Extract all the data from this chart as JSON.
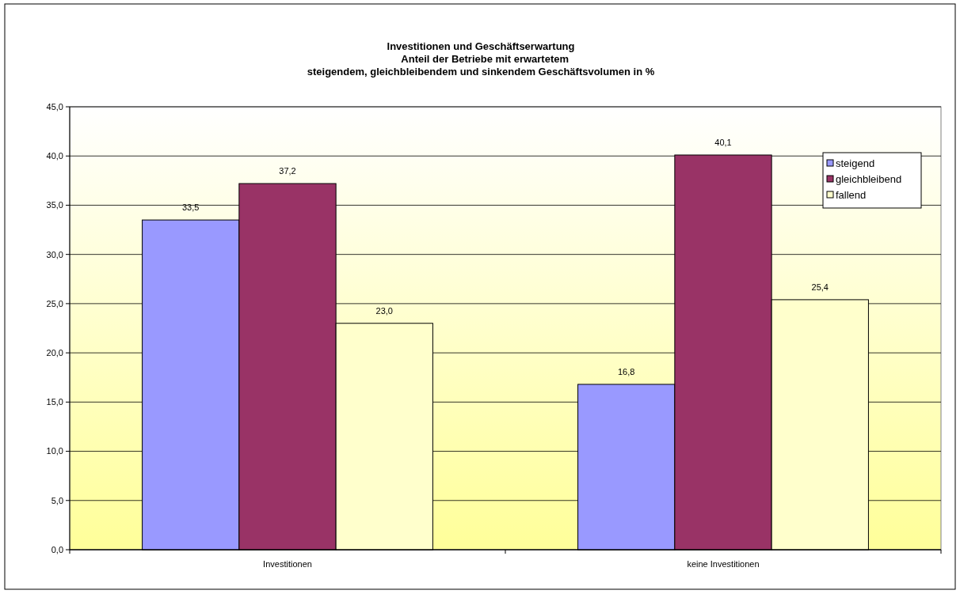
{
  "chart_data": {
    "type": "bar",
    "title": "Investitionen und Geschäftserwartung\n   Anteil der Betriebe mit erwartetem\nsteigendem, gleichbleibendem und sinkendem Geschäftsvolumen in %",
    "categories": [
      "Investitionen",
      "keine Investitionen"
    ],
    "series": [
      {
        "name": "steigend",
        "color": "#9999ff",
        "values": [
          33.5,
          16.8
        ]
      },
      {
        "name": "gleichbleibend",
        "color": "#993366",
        "values": [
          37.2,
          40.1
        ]
      },
      {
        "name": "fallend",
        "color": "#ffffcc",
        "values": [
          23.0,
          25.4
        ]
      }
    ],
    "value_labels": [
      [
        "33,5",
        "16,8"
      ],
      [
        "37,2",
        "40,1"
      ],
      [
        "23,0",
        "25,4"
      ]
    ],
    "ylim": [
      0,
      45
    ],
    "yticks": [
      {
        "value": 0,
        "label": "0,0"
      },
      {
        "value": 5,
        "label": "5,0"
      },
      {
        "value": 10,
        "label": "10,0"
      },
      {
        "value": 15,
        "label": "15,0"
      },
      {
        "value": 20,
        "label": "20,0"
      },
      {
        "value": 25,
        "label": "25,0"
      },
      {
        "value": 30,
        "label": "30,0"
      },
      {
        "value": 35,
        "label": "35,0"
      },
      {
        "value": 40,
        "label": "40,0"
      },
      {
        "value": 45,
        "label": "45,0"
      }
    ],
    "grid": "y",
    "legend": "top right"
  }
}
